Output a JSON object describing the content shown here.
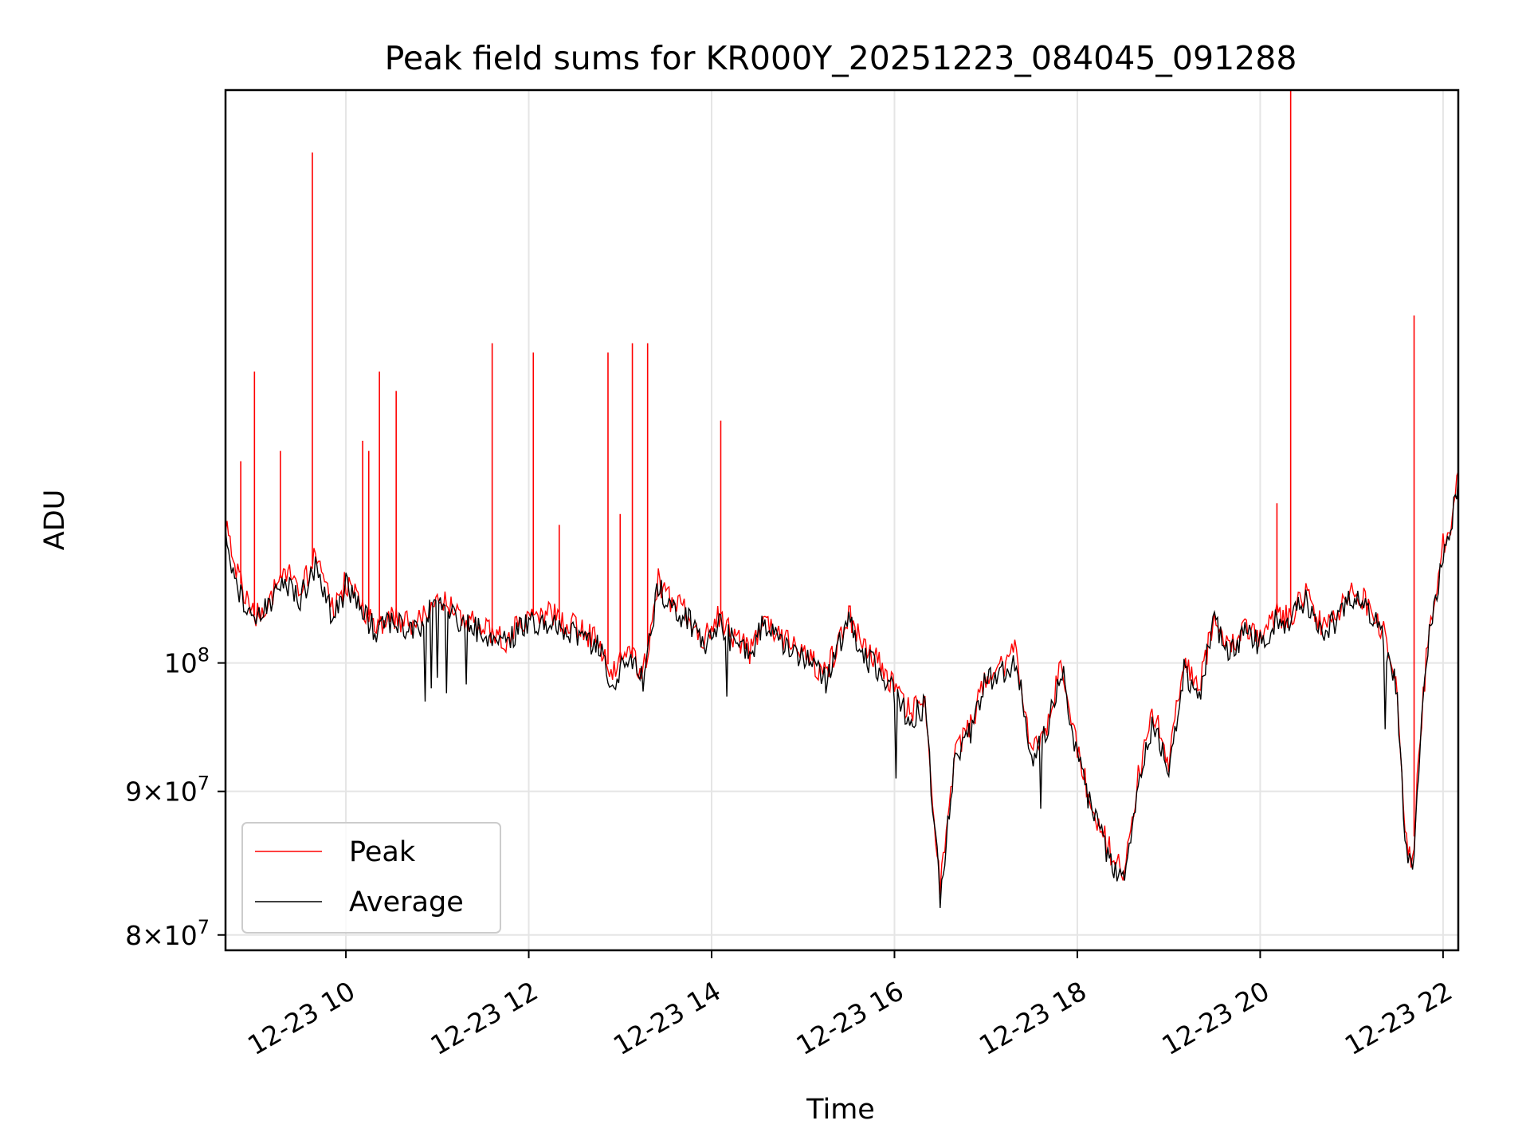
{
  "chart_data": {
    "type": "line",
    "title": "Peak field sums for KR000Y_20251223_084045_091288",
    "xlabel": "Time",
    "ylabel": "ADU",
    "y_scale": "log",
    "grid": true,
    "legend_position": "lower-left",
    "x_tick_labels": [
      "12-23 10",
      "12-23 12",
      "12-23 14",
      "12-23 16",
      "12-23 18",
      "12-23 20",
      "12-23 22"
    ],
    "y_tick_labels": [
      {
        "value": 80000000,
        "mantissa": "8",
        "exponent": "7"
      },
      {
        "value": 90000000,
        "mantissa": "9",
        "exponent": "7"
      },
      {
        "value": 100000000,
        "base": "10",
        "exponent": "8"
      }
    ],
    "xlim": [
      "2025-12-23 08:41",
      "2025-12-23 22:10"
    ],
    "ylim": [
      79000000,
      160000000
    ],
    "series": [
      {
        "name": "Peak",
        "color": "#ff0000",
        "x": [
          "2025-12-23 08:41",
          "2025-12-23 08:50",
          "2025-12-23 09:00",
          "2025-12-23 09:08",
          "2025-12-23 09:20",
          "2025-12-23 09:30",
          "2025-12-23 09:40",
          "2025-12-23 09:52",
          "2025-12-23 10:00",
          "2025-12-23 10:10",
          "2025-12-23 10:20",
          "2025-12-23 10:30",
          "2025-12-23 10:45",
          "2025-12-23 11:00",
          "2025-12-23 11:15",
          "2025-12-23 11:30",
          "2025-12-23 11:45",
          "2025-12-23 12:00",
          "2025-12-23 12:15",
          "2025-12-23 12:30",
          "2025-12-23 12:45",
          "2025-12-23 12:55",
          "2025-12-23 13:05",
          "2025-12-23 13:15",
          "2025-12-23 13:25",
          "2025-12-23 13:35",
          "2025-12-23 13:45",
          "2025-12-23 13:55",
          "2025-12-23 14:05",
          "2025-12-23 14:15",
          "2025-12-23 14:25",
          "2025-12-23 14:35",
          "2025-12-23 14:45",
          "2025-12-23 15:00",
          "2025-12-23 15:15",
          "2025-12-23 15:30",
          "2025-12-23 15:40",
          "2025-12-23 15:50",
          "2025-12-23 16:00",
          "2025-12-23 16:10",
          "2025-12-23 16:20",
          "2025-12-23 16:30",
          "2025-12-23 16:40",
          "2025-12-23 16:50",
          "2025-12-23 17:00",
          "2025-12-23 17:10",
          "2025-12-23 17:20",
          "2025-12-23 17:30",
          "2025-12-23 17:40",
          "2025-12-23 17:50",
          "2025-12-23 18:00",
          "2025-12-23 18:10",
          "2025-12-23 18:20",
          "2025-12-23 18:30",
          "2025-12-23 18:40",
          "2025-12-23 18:50",
          "2025-12-23 19:00",
          "2025-12-23 19:10",
          "2025-12-23 19:20",
          "2025-12-23 19:30",
          "2025-12-23 19:40",
          "2025-12-23 19:50",
          "2025-12-23 20:00",
          "2025-12-23 20:10",
          "2025-12-23 20:20",
          "2025-12-23 20:30",
          "2025-12-23 20:40",
          "2025-12-23 20:50",
          "2025-12-23 21:00",
          "2025-12-23 21:10",
          "2025-12-23 21:20",
          "2025-12-23 21:30",
          "2025-12-23 21:35",
          "2025-12-23 21:40",
          "2025-12-23 21:45",
          "2025-12-23 21:50",
          "2025-12-23 21:55",
          "2025-12-23 22:00",
          "2025-12-23 22:05",
          "2025-12-23 22:10"
        ],
        "values": [
          112000000,
          107000000,
          104000000,
          105000000,
          108000000,
          106000000,
          109000000,
          104000000,
          107000000,
          105000000,
          103000000,
          104000000,
          103000000,
          106000000,
          104000000,
          103000000,
          102000000,
          104000000,
          104000000,
          103000000,
          102000000,
          99000000,
          101000000,
          99000000,
          107000000,
          105000000,
          104000000,
          102000000,
          104000000,
          102000000,
          101000000,
          104000000,
          102000000,
          101000000,
          99000000,
          104000000,
          101000000,
          100000000,
          98000000,
          96000000,
          97000000,
          83000000,
          93000000,
          95000000,
          99000000,
          99500000,
          101000000,
          93000000,
          95000000,
          100000000,
          93000000,
          89000000,
          86000000,
          84000000,
          91000000,
          96000000,
          92000000,
          100000000,
          98000000,
          104000000,
          101000000,
          103000000,
          102000000,
          104000000,
          104000000,
          106000000,
          103000000,
          104000000,
          106000000,
          105000000,
          103000000,
          98000000,
          87000000,
          85000000,
          94000000,
          102000000,
          106000000,
          110000000,
          112000000,
          117000000
        ],
        "spikes": [
          {
            "x": "2025-12-23 08:51",
            "value": 118000000
          },
          {
            "x": "2025-12-23 09:00",
            "value": 127000000
          },
          {
            "x": "2025-12-23 09:17",
            "value": 119000000
          },
          {
            "x": "2025-12-23 09:38",
            "value": 152000000
          },
          {
            "x": "2025-12-23 10:11",
            "value": 120000000
          },
          {
            "x": "2025-12-23 10:15",
            "value": 119000000
          },
          {
            "x": "2025-12-23 10:22",
            "value": 127000000
          },
          {
            "x": "2025-12-23 10:33",
            "value": 125000000
          },
          {
            "x": "2025-12-23 11:36",
            "value": 130000000
          },
          {
            "x": "2025-12-23 12:03",
            "value": 129000000
          },
          {
            "x": "2025-12-23 12:20",
            "value": 112000000
          },
          {
            "x": "2025-12-23 12:52",
            "value": 129000000
          },
          {
            "x": "2025-12-23 13:00",
            "value": 113000000
          },
          {
            "x": "2025-12-23 13:08",
            "value": 130000000
          },
          {
            "x": "2025-12-23 13:18",
            "value": 130000000
          },
          {
            "x": "2025-12-23 14:06",
            "value": 122000000
          },
          {
            "x": "2025-12-23 20:11",
            "value": 114000000
          },
          {
            "x": "2025-12-23 20:20",
            "value": 160000000
          },
          {
            "x": "2025-12-23 21:41",
            "value": 133000000
          }
        ]
      },
      {
        "name": "Average",
        "color": "#000000",
        "x": [
          "2025-12-23 08:41",
          "2025-12-23 08:50",
          "2025-12-23 09:00",
          "2025-12-23 09:08",
          "2025-12-23 09:20",
          "2025-12-23 09:30",
          "2025-12-23 09:40",
          "2025-12-23 09:52",
          "2025-12-23 10:00",
          "2025-12-23 10:10",
          "2025-12-23 10:20",
          "2025-12-23 10:30",
          "2025-12-23 10:45",
          "2025-12-23 11:00",
          "2025-12-23 11:15",
          "2025-12-23 11:30",
          "2025-12-23 11:45",
          "2025-12-23 12:00",
          "2025-12-23 12:15",
          "2025-12-23 12:30",
          "2025-12-23 12:45",
          "2025-12-23 12:55",
          "2025-12-23 13:05",
          "2025-12-23 13:15",
          "2025-12-23 13:25",
          "2025-12-23 13:35",
          "2025-12-23 13:45",
          "2025-12-23 13:55",
          "2025-12-23 14:05",
          "2025-12-23 14:15",
          "2025-12-23 14:25",
          "2025-12-23 14:35",
          "2025-12-23 14:45",
          "2025-12-23 15:00",
          "2025-12-23 15:15",
          "2025-12-23 15:30",
          "2025-12-23 15:40",
          "2025-12-23 15:50",
          "2025-12-23 16:00",
          "2025-12-23 16:10",
          "2025-12-23 16:20",
          "2025-12-23 16:30",
          "2025-12-23 16:40",
          "2025-12-23 16:50",
          "2025-12-23 17:00",
          "2025-12-23 17:10",
          "2025-12-23 17:20",
          "2025-12-23 17:30",
          "2025-12-23 17:40",
          "2025-12-23 17:50",
          "2025-12-23 18:00",
          "2025-12-23 18:10",
          "2025-12-23 18:20",
          "2025-12-23 18:30",
          "2025-12-23 18:40",
          "2025-12-23 18:50",
          "2025-12-23 19:00",
          "2025-12-23 19:10",
          "2025-12-23 19:20",
          "2025-12-23 19:30",
          "2025-12-23 19:40",
          "2025-12-23 19:50",
          "2025-12-23 20:00",
          "2025-12-23 20:10",
          "2025-12-23 20:20",
          "2025-12-23 20:30",
          "2025-12-23 20:40",
          "2025-12-23 20:50",
          "2025-12-23 21:00",
          "2025-12-23 21:10",
          "2025-12-23 21:20",
          "2025-12-23 21:30",
          "2025-12-23 21:35",
          "2025-12-23 21:40",
          "2025-12-23 21:45",
          "2025-12-23 21:50",
          "2025-12-23 21:55",
          "2025-12-23 22:00",
          "2025-12-23 22:05",
          "2025-12-23 22:10"
        ],
        "values": [
          111000000,
          106000000,
          103500000,
          104500000,
          107000000,
          105500000,
          108000000,
          103500000,
          106500000,
          104500000,
          102500000,
          103500000,
          102500000,
          105500000,
          103500000,
          102500000,
          101500000,
          103500000,
          103500000,
          102500000,
          101500000,
          98500000,
          100500000,
          98500000,
          106500000,
          104500000,
          103500000,
          101500000,
          103500000,
          101500000,
          100500000,
          103500000,
          101500000,
          100500000,
          98500000,
          103500000,
          100500000,
          99500000,
          97500000,
          95500000,
          96500000,
          82500000,
          92500000,
          94500000,
          98500000,
          99000000,
          100500000,
          92500000,
          94500000,
          99500000,
          92500000,
          88500000,
          85500000,
          83500000,
          90500000,
          95500000,
          91500000,
          99500000,
          97500000,
          103500000,
          100500000,
          102500000,
          101500000,
          103500000,
          103500000,
          105500000,
          102500000,
          103500000,
          105500000,
          104500000,
          102500000,
          97500000,
          86000000,
          84500000,
          93500000,
          101500000,
          105500000,
          109500000,
          111500000,
          116500000
        ]
      }
    ]
  }
}
